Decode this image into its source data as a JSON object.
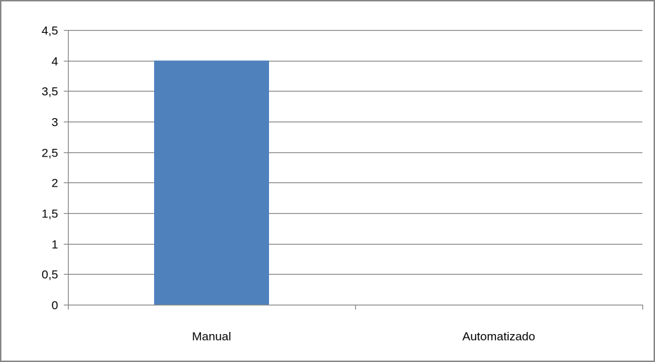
{
  "chart_data": {
    "type": "bar",
    "categories": [
      "Manual",
      "Automatizado"
    ],
    "values": [
      4,
      0
    ],
    "ylim": [
      0,
      4.5
    ],
    "yticks": [
      0,
      0.5,
      1,
      1.5,
      2,
      2.5,
      3,
      3.5,
      4,
      4.5
    ],
    "ytick_labels": [
      "0",
      "0,5",
      "1",
      "1,5",
      "2",
      "2,5",
      "3",
      "3,5",
      "4",
      "4,5"
    ],
    "grid": true,
    "legend": "none",
    "title": "",
    "xlabel": "",
    "ylabel": ""
  },
  "colors": {
    "bar": "#4f81bd",
    "grid": "#868686",
    "border": "#868686"
  }
}
